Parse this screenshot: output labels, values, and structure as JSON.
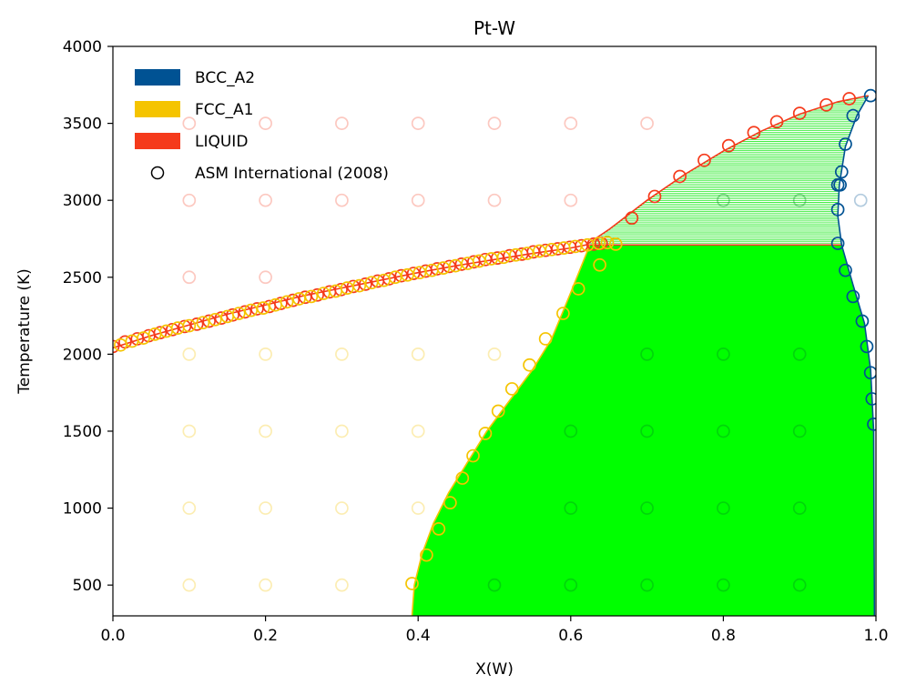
{
  "chart_data": {
    "type": "scatter",
    "title": "Pt-W",
    "xlabel": "X(W)",
    "ylabel": "Temperature (K)",
    "xlim": [
      0.0,
      1.0
    ],
    "ylim": [
      300,
      4000
    ],
    "xticks": [
      0.0,
      0.2,
      0.4,
      0.6,
      0.8,
      1.0
    ],
    "yticks": [
      500,
      1000,
      1500,
      2000,
      2500,
      3000,
      3500,
      4000
    ],
    "grid": false,
    "legend_position": "top-left",
    "colors": {
      "bcc": "#005293",
      "fcc": "#f5c400",
      "liquid": "#f53a1b",
      "two_phase_fill": "#00ff00",
      "tie_line": "#00e600"
    },
    "legend": [
      {
        "label": "BCC_A2",
        "kind": "patch",
        "color": "#005293"
      },
      {
        "label": "FCC_A1",
        "kind": "patch",
        "color": "#f5c400"
      },
      {
        "label": "LIQUID",
        "kind": "patch",
        "color": "#f53a1b"
      },
      {
        "label": "ASM International (2008)",
        "kind": "marker",
        "color": "#000000"
      }
    ],
    "peritectic_T": 2710,
    "liquidus": [
      [
        0.0,
        2041
      ],
      [
        0.05,
        2120
      ],
      [
        0.1,
        2190
      ],
      [
        0.15,
        2260
      ],
      [
        0.2,
        2320
      ],
      [
        0.25,
        2380
      ],
      [
        0.3,
        2430
      ],
      [
        0.35,
        2480
      ],
      [
        0.4,
        2530
      ],
      [
        0.45,
        2575
      ],
      [
        0.5,
        2615
      ],
      [
        0.55,
        2655
      ],
      [
        0.6,
        2690
      ],
      [
        0.62,
        2710
      ],
      [
        0.65,
        2810
      ],
      [
        0.7,
        3000
      ],
      [
        0.75,
        3170
      ],
      [
        0.8,
        3320
      ],
      [
        0.85,
        3450
      ],
      [
        0.9,
        3560
      ],
      [
        0.95,
        3640
      ],
      [
        0.99,
        3680
      ]
    ],
    "fcc_solvus": [
      [
        0.392,
        300
      ],
      [
        0.395,
        500
      ],
      [
        0.405,
        700
      ],
      [
        0.42,
        900
      ],
      [
        0.44,
        1100
      ],
      [
        0.465,
        1300
      ],
      [
        0.49,
        1500
      ],
      [
        0.52,
        1700
      ],
      [
        0.55,
        1900
      ],
      [
        0.575,
        2100
      ],
      [
        0.6,
        2400
      ],
      [
        0.625,
        2710
      ]
    ],
    "bcc_boundary": [
      [
        0.998,
        300
      ],
      [
        0.997,
        1500
      ],
      [
        0.993,
        1900
      ],
      [
        0.985,
        2200
      ],
      [
        0.97,
        2450
      ],
      [
        0.955,
        2710
      ],
      [
        0.95,
        2900
      ],
      [
        0.952,
        3100
      ],
      [
        0.96,
        3350
      ],
      [
        0.975,
        3550
      ],
      [
        0.99,
        3680
      ]
    ],
    "observations": {
      "liquid_edge": [
        [
          0.0,
          2050
        ],
        [
          0.016,
          2080
        ],
        [
          0.032,
          2100
        ],
        [
          0.047,
          2120
        ],
        [
          0.062,
          2140
        ],
        [
          0.078,
          2160
        ],
        [
          0.094,
          2180
        ],
        [
          0.11,
          2195
        ],
        [
          0.126,
          2215
        ],
        [
          0.142,
          2235
        ],
        [
          0.157,
          2255
        ],
        [
          0.173,
          2275
        ],
        [
          0.189,
          2295
        ],
        [
          0.205,
          2310
        ],
        [
          0.22,
          2330
        ],
        [
          0.236,
          2350
        ],
        [
          0.252,
          2370
        ],
        [
          0.268,
          2385
        ],
        [
          0.284,
          2405
        ],
        [
          0.299,
          2420
        ],
        [
          0.315,
          2440
        ],
        [
          0.331,
          2455
        ],
        [
          0.347,
          2475
        ],
        [
          0.362,
          2490
        ],
        [
          0.378,
          2510
        ],
        [
          0.394,
          2525
        ],
        [
          0.41,
          2540
        ],
        [
          0.425,
          2555
        ],
        [
          0.441,
          2570
        ],
        [
          0.457,
          2585
        ],
        [
          0.473,
          2600
        ],
        [
          0.488,
          2615
        ],
        [
          0.504,
          2625
        ],
        [
          0.52,
          2640
        ],
        [
          0.536,
          2650
        ],
        [
          0.551,
          2665
        ],
        [
          0.567,
          2675
        ],
        [
          0.583,
          2685
        ],
        [
          0.599,
          2695
        ],
        [
          0.614,
          2705
        ],
        [
          0.63,
          2715
        ],
        [
          0.64,
          2720
        ],
        [
          0.68,
          2885
        ],
        [
          0.71,
          3025
        ],
        [
          0.743,
          3155
        ],
        [
          0.775,
          3260
        ],
        [
          0.807,
          3355
        ],
        [
          0.84,
          3440
        ],
        [
          0.87,
          3510
        ],
        [
          0.9,
          3565
        ],
        [
          0.935,
          3620
        ],
        [
          0.965,
          3660
        ]
      ],
      "fcc_edge": [
        [
          0.01,
          2060
        ],
        [
          0.025,
          2085
        ],
        [
          0.04,
          2105
        ],
        [
          0.055,
          2130
        ],
        [
          0.07,
          2150
        ],
        [
          0.085,
          2170
        ],
        [
          0.1,
          2185
        ],
        [
          0.118,
          2205
        ],
        [
          0.134,
          2225
        ],
        [
          0.15,
          2245
        ],
        [
          0.165,
          2265
        ],
        [
          0.181,
          2285
        ],
        [
          0.197,
          2300
        ],
        [
          0.213,
          2320
        ],
        [
          0.228,
          2340
        ],
        [
          0.244,
          2360
        ],
        [
          0.26,
          2375
        ],
        [
          0.276,
          2395
        ],
        [
          0.292,
          2410
        ],
        [
          0.307,
          2430
        ],
        [
          0.323,
          2445
        ],
        [
          0.339,
          2465
        ],
        [
          0.355,
          2480
        ],
        [
          0.37,
          2500
        ],
        [
          0.386,
          2515
        ],
        [
          0.402,
          2530
        ],
        [
          0.418,
          2545
        ],
        [
          0.433,
          2560
        ],
        [
          0.449,
          2575
        ],
        [
          0.465,
          2590
        ],
        [
          0.48,
          2605
        ],
        [
          0.496,
          2620
        ],
        [
          0.512,
          2630
        ],
        [
          0.528,
          2645
        ],
        [
          0.543,
          2655
        ],
        [
          0.559,
          2670
        ],
        [
          0.575,
          2680
        ],
        [
          0.591,
          2690
        ],
        [
          0.606,
          2700
        ],
        [
          0.622,
          2710
        ],
        [
          0.637,
          2720
        ],
        [
          0.648,
          2725
        ],
        [
          0.659,
          2715
        ],
        [
          0.638,
          2580
        ],
        [
          0.61,
          2425
        ],
        [
          0.59,
          2265
        ],
        [
          0.567,
          2100
        ],
        [
          0.546,
          1930
        ],
        [
          0.523,
          1775
        ],
        [
          0.505,
          1630
        ],
        [
          0.488,
          1485
        ],
        [
          0.472,
          1340
        ],
        [
          0.458,
          1195
        ],
        [
          0.442,
          1035
        ],
        [
          0.427,
          865
        ],
        [
          0.411,
          695
        ],
        [
          0.392,
          510
        ]
      ],
      "bcc_edge": [
        [
          0.993,
          3680
        ],
        [
          0.97,
          3550
        ],
        [
          0.96,
          3365
        ],
        [
          0.955,
          3185
        ],
        [
          0.953,
          3100
        ],
        [
          0.95,
          3100
        ],
        [
          0.95,
          2940
        ],
        [
          0.95,
          2720
        ],
        [
          0.96,
          2545
        ],
        [
          0.97,
          2375
        ],
        [
          0.982,
          2215
        ],
        [
          0.988,
          2050
        ],
        [
          0.993,
          1880
        ],
        [
          0.995,
          1710
        ],
        [
          0.997,
          1545
        ]
      ],
      "faint_fcc": [
        [
          0.1,
          500
        ],
        [
          0.2,
          500
        ],
        [
          0.3,
          500
        ],
        [
          0.1,
          1000
        ],
        [
          0.2,
          1000
        ],
        [
          0.3,
          1000
        ],
        [
          0.4,
          1000
        ],
        [
          0.1,
          1500
        ],
        [
          0.2,
          1500
        ],
        [
          0.3,
          1500
        ],
        [
          0.4,
          1500
        ],
        [
          0.1,
          2000
        ],
        [
          0.2,
          2000
        ],
        [
          0.3,
          2000
        ],
        [
          0.4,
          2000
        ],
        [
          0.5,
          2000
        ]
      ],
      "faint_liquid": [
        [
          0.1,
          2500
        ],
        [
          0.2,
          2500
        ],
        [
          0.1,
          3000
        ],
        [
          0.2,
          3000
        ],
        [
          0.3,
          3000
        ],
        [
          0.4,
          3000
        ],
        [
          0.5,
          3000
        ],
        [
          0.6,
          3000
        ],
        [
          0.1,
          3500
        ],
        [
          0.2,
          3500
        ],
        [
          0.3,
          3500
        ],
        [
          0.4,
          3500
        ],
        [
          0.5,
          3500
        ],
        [
          0.6,
          3500
        ],
        [
          0.7,
          3500
        ]
      ],
      "faint_bcc": [
        [
          0.98,
          3000
        ]
      ],
      "faint_two_phase": [
        [
          0.5,
          500
        ],
        [
          0.6,
          500
        ],
        [
          0.7,
          500
        ],
        [
          0.8,
          500
        ],
        [
          0.9,
          500
        ],
        [
          0.6,
          1000
        ],
        [
          0.7,
          1000
        ],
        [
          0.8,
          1000
        ],
        [
          0.9,
          1000
        ],
        [
          0.6,
          1500
        ],
        [
          0.7,
          1500
        ],
        [
          0.8,
          1500
        ],
        [
          0.9,
          1500
        ],
        [
          0.7,
          2000
        ],
        [
          0.8,
          2000
        ],
        [
          0.9,
          2000
        ],
        [
          0.8,
          3000
        ],
        [
          0.9,
          3000
        ]
      ]
    }
  }
}
